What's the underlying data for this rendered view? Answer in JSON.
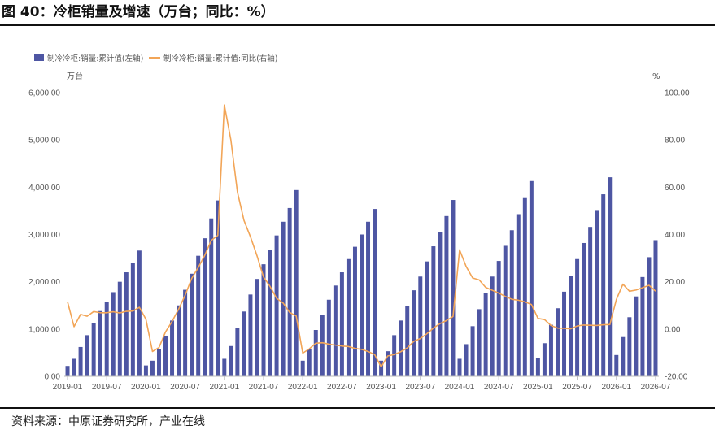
{
  "figure": {
    "title": "图 40：冷柜销量及增速（万台；同比：%）",
    "source": "资料来源：中原证券研究所，产业在线"
  },
  "colors": {
    "bar": "#4E56A3",
    "line": "#F2A557",
    "rule": "#111111",
    "axis": "#BBBBBB"
  },
  "chart_data": {
    "type": "bar+line",
    "legend_position": "top-left",
    "grid": false,
    "left_axis": {
      "unit": "万台",
      "ylim": [
        0,
        6000
      ],
      "ticks": [
        0,
        1000,
        2000,
        3000,
        4000,
        5000,
        6000
      ],
      "tick_labels": [
        "0.00",
        "1,000.00",
        "2,000.00",
        "3,000.00",
        "4,000.00",
        "5,000.00",
        "6,000.00"
      ]
    },
    "right_axis": {
      "unit": "%",
      "ylim": [
        -20,
        100
      ],
      "ticks": [
        -20,
        0,
        20,
        40,
        60,
        80,
        100
      ],
      "tick_labels": [
        "-20.00",
        "0.00",
        "20.00",
        "40.00",
        "60.00",
        "80.00",
        "100.00"
      ]
    },
    "x_tick_labels": [
      "2019-01",
      "2019-07",
      "2020-01",
      "2020-07",
      "2021-01",
      "2021-07",
      "2022-01",
      "2022-07",
      "2023-01",
      "2023-07",
      "2024-01",
      "2024-07",
      "2025-01",
      "2025-07",
      "2026-01",
      "2026-07"
    ],
    "x": [
      "2019-01",
      "2019-02",
      "2019-03",
      "2019-04",
      "2019-05",
      "2019-06",
      "2019-07",
      "2019-08",
      "2019-09",
      "2019-10",
      "2019-11",
      "2019-12",
      "2020-01",
      "2020-02",
      "2020-03",
      "2020-04",
      "2020-05",
      "2020-06",
      "2020-07",
      "2020-08",
      "2020-09",
      "2020-10",
      "2020-11",
      "2020-12",
      "2021-01",
      "2021-02",
      "2021-03",
      "2021-04",
      "2021-05",
      "2021-06",
      "2021-07",
      "2021-08",
      "2021-09",
      "2021-10",
      "2021-11",
      "2021-12",
      "2022-01",
      "2022-02",
      "2022-03",
      "2022-04",
      "2022-05",
      "2022-06",
      "2022-07",
      "2022-08",
      "2022-09",
      "2022-10",
      "2022-11",
      "2022-12",
      "2023-01",
      "2023-02",
      "2023-03",
      "2023-04",
      "2023-05",
      "2023-06",
      "2023-07",
      "2023-08",
      "2023-09",
      "2023-10",
      "2023-11",
      "2023-12",
      "2024-01",
      "2024-02",
      "2024-03",
      "2024-04",
      "2024-05",
      "2024-06",
      "2024-07",
      "2024-08",
      "2024-09",
      "2024-10",
      "2024-11",
      "2024-12",
      "2025-01",
      "2025-02",
      "2025-03",
      "2025-04",
      "2025-05",
      "2025-06",
      "2025-07",
      "2025-08",
      "2025-09",
      "2025-10",
      "2025-11",
      "2025-12",
      "2026-01",
      "2026-02",
      "2026-03",
      "2026-04",
      "2026-05",
      "2026-06",
      "2026-07"
    ],
    "series": [
      {
        "name": "制冷冷柜:销量:累计值(左轴)",
        "type": "bar",
        "axis": "left",
        "values": [
          220,
          370,
          620,
          870,
          1130,
          1380,
          1580,
          1780,
          2000,
          2200,
          2400,
          2660,
          230,
          330,
          580,
          860,
          1180,
          1500,
          1830,
          2170,
          2550,
          2920,
          3340,
          3720,
          370,
          640,
          1030,
          1370,
          1730,
          2060,
          2370,
          2680,
          2980,
          3270,
          3560,
          3940,
          330,
          580,
          980,
          1290,
          1620,
          1920,
          2200,
          2480,
          2740,
          3000,
          3270,
          3540,
          330,
          530,
          870,
          1180,
          1490,
          1820,
          2110,
          2430,
          2750,
          3060,
          3390,
          3730,
          370,
          680,
          1060,
          1420,
          1770,
          2110,
          2440,
          2760,
          3090,
          3430,
          3770,
          4130,
          390,
          700,
          1090,
          1440,
          1790,
          2130,
          2480,
          2820,
          3160,
          3500,
          3850,
          4210,
          450,
          830,
          1250,
          1690,
          2100,
          2520,
          2880
        ]
      },
      {
        "name": "制冷冷柜:销量:累计值:同比(右轴)",
        "type": "line",
        "axis": "right",
        "values": [
          11.5,
          1.0,
          6.2,
          5.4,
          7.4,
          6.9,
          6.9,
          7.3,
          6.8,
          7.5,
          7.6,
          9.2,
          4.1,
          -9.5,
          -7.8,
          -1.2,
          3.2,
          8.4,
          14.3,
          21.4,
          26.0,
          31.2,
          37.5,
          39.6,
          94.8,
          80.0,
          58.0,
          46.0,
          39.0,
          31.0,
          22.0,
          18.0,
          13.0,
          11.0,
          7.0,
          5.5,
          -10.2,
          -8.4,
          -6.0,
          -5.8,
          -6.4,
          -6.8,
          -7.2,
          -7.4,
          -8.2,
          -8.6,
          -9.5,
          -10.8,
          -16.0,
          -11.4,
          -10.8,
          -9.6,
          -8.0,
          -5.2,
          -4.0,
          -2.0,
          0.4,
          2.3,
          3.6,
          5.3,
          33.5,
          26.5,
          21.6,
          20.8,
          17.6,
          16.4,
          15.2,
          13.8,
          12.6,
          12.2,
          11.5,
          10.4,
          4.5,
          4.0,
          1.5,
          0.4,
          0.3,
          0.1,
          1.3,
          1.7,
          1.6,
          1.5,
          1.8,
          1.9,
          12.5,
          19.0,
          16.0,
          16.5,
          17.5,
          18.5,
          16.0
        ]
      }
    ]
  }
}
